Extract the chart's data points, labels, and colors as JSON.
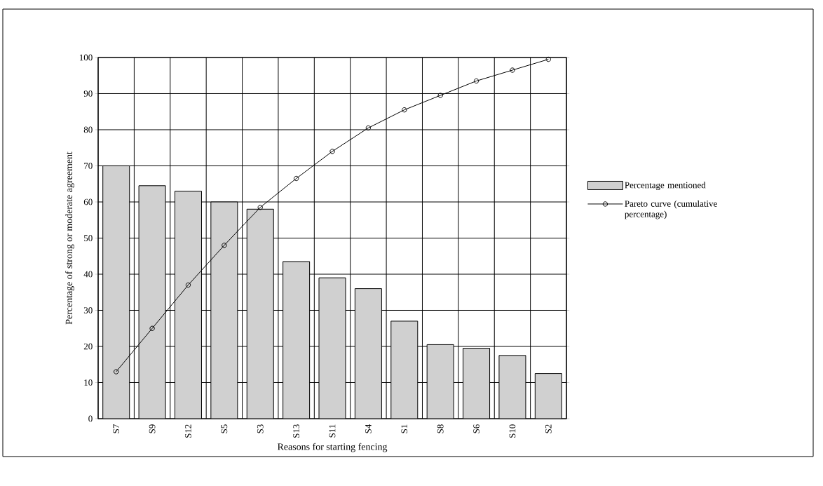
{
  "chart_data": {
    "type": "bar",
    "xlabel": "Reasons for starting fencing",
    "ylabel": "Percentage of strong or moderate agreement",
    "categories": [
      "S7",
      "S9",
      "S12",
      "S5",
      "S3",
      "S13",
      "S11",
      "S4",
      "S1",
      "S8",
      "S6",
      "S10",
      "S2"
    ],
    "series": [
      {
        "name": "Percentage mentioned",
        "color": "#d0d0d0",
        "values": [
          70,
          64.5,
          63,
          60,
          58,
          43.5,
          39,
          36,
          27,
          20.5,
          19.5,
          17.5,
          12.5
        ]
      },
      {
        "name": "Pareto curve (cumulative percentage)",
        "type": "line",
        "color": "#000000",
        "marker": "circle",
        "values": [
          13,
          25,
          37,
          48,
          58.5,
          66.5,
          74,
          80.5,
          85.5,
          89.5,
          93.5,
          96.5,
          99.5
        ]
      }
    ],
    "ylim": [
      0,
      100
    ],
    "yticks": [
      0,
      10,
      20,
      30,
      40,
      50,
      60,
      70,
      80,
      90,
      100
    ],
    "grid": true,
    "legend": "right"
  }
}
